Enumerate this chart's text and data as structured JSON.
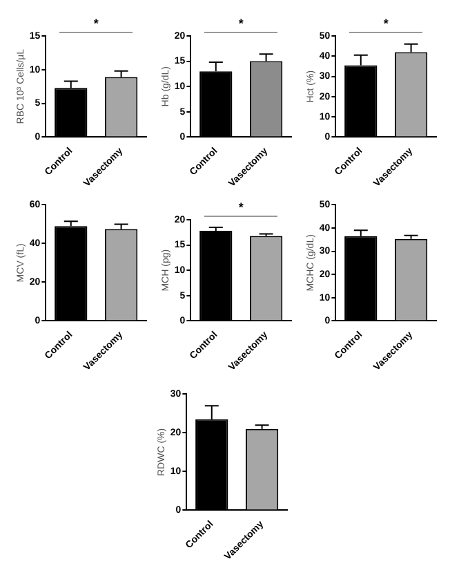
{
  "chart_data": [
    {
      "type": "bar",
      "ylabel": "RBC 10³ Cells/µL",
      "categories": [
        "Control",
        "Vasectomy"
      ],
      "values": [
        7.3,
        8.9
      ],
      "colors": [
        "#000000",
        "#a6a6a6"
      ],
      "errors": [
        [
          7.3,
          8.3
        ],
        [
          8.9,
          9.8
        ]
      ],
      "ylim": [
        0,
        15
      ],
      "yticks": [
        0,
        5,
        10,
        15
      ],
      "grid": false,
      "legend": false,
      "annotations": [
        "*"
      ]
    },
    {
      "type": "bar",
      "ylabel": "Hb (g/dL)",
      "categories": [
        "Control",
        "Vasectomy"
      ],
      "values": [
        13,
        15
      ],
      "colors": [
        "#000000",
        "#8c8c8c"
      ],
      "errors": [
        [
          13,
          14.8
        ],
        [
          15,
          16.4
        ]
      ],
      "ylim": [
        0,
        20
      ],
      "yticks": [
        0,
        5,
        10,
        15,
        20
      ],
      "grid": false,
      "legend": false,
      "annotations": [
        "*"
      ]
    },
    {
      "type": "bar",
      "ylabel": "Hct (%)",
      "categories": [
        "Control",
        "Vasectomy"
      ],
      "values": [
        35.5,
        42
      ],
      "colors": [
        "#000000",
        "#a6a6a6"
      ],
      "errors": [
        [
          35.5,
          40.5
        ],
        [
          42,
          46
        ]
      ],
      "ylim": [
        0,
        50
      ],
      "yticks": [
        0,
        10,
        20,
        30,
        40,
        50
      ],
      "grid": false,
      "legend": false,
      "annotations": [
        "*"
      ]
    },
    {
      "type": "bar",
      "ylabel": "MCV (fL)",
      "categories": [
        "Control",
        "Vasectomy"
      ],
      "values": [
        49,
        47.5
      ],
      "colors": [
        "#000000",
        "#a6a6a6"
      ],
      "errors": [
        [
          49,
          51.5
        ],
        [
          47.5,
          50
        ]
      ],
      "ylim": [
        0,
        60
      ],
      "yticks": [
        0,
        20,
        40,
        60
      ],
      "grid": false,
      "legend": false
    },
    {
      "type": "bar",
      "ylabel": "MCH (pg)",
      "categories": [
        "Control",
        "Vasectomy"
      ],
      "values": [
        17.8,
        16.8
      ],
      "colors": [
        "#000000",
        "#a6a6a6"
      ],
      "errors": [
        [
          17.8,
          18.5
        ],
        [
          16.8,
          17.2
        ]
      ],
      "ylim": [
        0,
        20
      ],
      "yticks": [
        0,
        5,
        10,
        15,
        20
      ],
      "grid": false,
      "legend": false,
      "annotations": [
        "*"
      ]
    },
    {
      "type": "bar",
      "ylabel": "MCHC (g/dL)",
      "categories": [
        "Control",
        "Vasectomy"
      ],
      "values": [
        36.5,
        35.3
      ],
      "colors": [
        "#000000",
        "#a6a6a6"
      ],
      "errors": [
        [
          36.5,
          39
        ],
        [
          35.3,
          36.8
        ]
      ],
      "ylim": [
        0,
        50
      ],
      "yticks": [
        0,
        10,
        20,
        30,
        40,
        50
      ],
      "grid": false,
      "legend": false
    },
    {
      "type": "bar",
      "ylabel": "RDWC (%)",
      "categories": [
        "Control",
        "Vasectomy"
      ],
      "values": [
        23.5,
        21
      ],
      "colors": [
        "#000000",
        "#a6a6a6"
      ],
      "errors": [
        [
          23.5,
          27
        ],
        [
          21,
          22
        ]
      ],
      "ylim": [
        0,
        30
      ],
      "yticks": [
        0,
        10,
        20,
        30
      ],
      "grid": false,
      "legend": false
    }
  ]
}
